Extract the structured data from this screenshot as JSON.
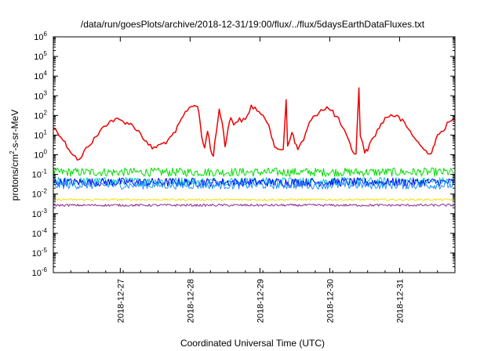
{
  "chart_data": {
    "type": "line",
    "title": "/data/run/goesPlots/archive/2018-12-31/19:00/flux/../flux/5daysEarthDataFluxes.txt",
    "xlabel": "Coordinated Universal Time (UTC)",
    "ylabel": "protons/cm2-s-sr-MeV",
    "ylabel_parts": {
      "base": "protons/cm",
      "sup": "2",
      "rest": "-s-sr-MeV"
    },
    "y_scale": "log",
    "ylim": [
      "1e-6",
      "1e6"
    ],
    "y_ticks": [
      {
        "base": "10",
        "exp": "-6"
      },
      {
        "base": "10",
        "exp": "-5"
      },
      {
        "base": "10",
        "exp": "-4"
      },
      {
        "base": "10",
        "exp": "-3"
      },
      {
        "base": "10",
        "exp": "-2"
      },
      {
        "base": "10",
        "exp": "-1"
      },
      {
        "base": "10",
        "exp": "0"
      },
      {
        "base": "10",
        "exp": "1"
      },
      {
        "base": "10",
        "exp": "2"
      },
      {
        "base": "10",
        "exp": "3"
      },
      {
        "base": "10",
        "exp": "4"
      },
      {
        "base": "10",
        "exp": "5"
      },
      {
        "base": "10",
        "exp": "6"
      }
    ],
    "x_ticks": [
      "2018-12-27",
      "2018-12-28",
      "2018-12-29",
      "2018-12-30",
      "2018-12-31"
    ],
    "x_start": "2018-12-26T01:00",
    "x_end": "2018-12-31T19:00",
    "grid": false,
    "legend": "none",
    "series": [
      {
        "color": "#ee0000",
        "points": [
          [
            "2018-12-26T01:00",
            25
          ],
          [
            "2018-12-26T03:00",
            12
          ],
          [
            "2018-12-26T05:00",
            4
          ],
          [
            "2018-12-26T07:00",
            1.5
          ],
          [
            "2018-12-26T08:30",
            0.8
          ],
          [
            "2018-12-26T10:00",
            0.5
          ],
          [
            "2018-12-26T11:30",
            1.3
          ],
          [
            "2018-12-26T13:00",
            3
          ],
          [
            "2018-12-26T15:00",
            6
          ],
          [
            "2018-12-26T17:00",
            15
          ],
          [
            "2018-12-26T19:00",
            35
          ],
          [
            "2018-12-26T21:00",
            55
          ],
          [
            "2018-12-26T23:00",
            60
          ],
          [
            "2018-12-27T01:00",
            50
          ],
          [
            "2018-12-27T03:00",
            40
          ],
          [
            "2018-12-27T05:00",
            25
          ],
          [
            "2018-12-27T07:00",
            12
          ],
          [
            "2018-12-27T09:00",
            4
          ],
          [
            "2018-12-27T11:00",
            2.2
          ],
          [
            "2018-12-27T13:00",
            2.8
          ],
          [
            "2018-12-27T15:00",
            4
          ],
          [
            "2018-12-27T17:00",
            6
          ],
          [
            "2018-12-27T19:00",
            15
          ],
          [
            "2018-12-27T21:00",
            60
          ],
          [
            "2018-12-27T23:00",
            200
          ],
          [
            "2018-12-28T01:00",
            350
          ],
          [
            "2018-12-28T02:00",
            330
          ],
          [
            "2018-12-28T03:00",
            150
          ],
          [
            "2018-12-28T04:00",
            8
          ],
          [
            "2018-12-28T05:00",
            2
          ],
          [
            "2018-12-28T06:00",
            20
          ],
          [
            "2018-12-28T07:00",
            2
          ],
          [
            "2018-12-28T08:00",
            0.9
          ],
          [
            "2018-12-28T09:00",
            15
          ],
          [
            "2018-12-28T10:00",
            200
          ],
          [
            "2018-12-28T11:00",
            50
          ],
          [
            "2018-12-28T12:00",
            3
          ],
          [
            "2018-12-28T13:00",
            20
          ],
          [
            "2018-12-28T14:00",
            80
          ],
          [
            "2018-12-28T15:00",
            40
          ],
          [
            "2018-12-28T17:00",
            60
          ],
          [
            "2018-12-28T19:00",
            55
          ],
          [
            "2018-12-28T21:00",
            300
          ],
          [
            "2018-12-28T23:00",
            200
          ],
          [
            "2018-12-29T01:00",
            80
          ],
          [
            "2018-12-29T03:00",
            40
          ],
          [
            "2018-12-29T04:00",
            10
          ],
          [
            "2018-12-29T05:00",
            3
          ],
          [
            "2018-12-29T06:00",
            1.5
          ],
          [
            "2018-12-29T08:00",
            2
          ],
          [
            "2018-12-29T09:00",
            700
          ],
          [
            "2018-12-29T09:30",
            3
          ],
          [
            "2018-12-29T11:00",
            15
          ],
          [
            "2018-12-29T12:00",
            4
          ],
          [
            "2018-12-29T13:00",
            2
          ],
          [
            "2018-12-29T15:00",
            6
          ],
          [
            "2018-12-29T17:00",
            40
          ],
          [
            "2018-12-29T19:00",
            100
          ],
          [
            "2018-12-29T21:00",
            200
          ],
          [
            "2018-12-29T23:00",
            250
          ],
          [
            "2018-12-30T01:00",
            150
          ],
          [
            "2018-12-30T03:00",
            60
          ],
          [
            "2018-12-30T05:00",
            15
          ],
          [
            "2018-12-30T07:00",
            3
          ],
          [
            "2018-12-30T08:00",
            1.5
          ],
          [
            "2018-12-30T09:00",
            1
          ],
          [
            "2018-12-30T10:00",
            2500
          ],
          [
            "2018-12-30T10:30",
            8
          ],
          [
            "2018-12-30T12:00",
            1.5
          ],
          [
            "2018-12-30T13:00",
            2
          ],
          [
            "2018-12-30T15:00",
            8
          ],
          [
            "2018-12-30T17:00",
            25
          ],
          [
            "2018-12-30T19:00",
            70
          ],
          [
            "2018-12-30T21:00",
            110
          ],
          [
            "2018-12-30T23:00",
            90
          ],
          [
            "2018-12-31T01:00",
            50
          ],
          [
            "2018-12-31T03:00",
            20
          ],
          [
            "2018-12-31T05:00",
            8
          ],
          [
            "2018-12-31T07:00",
            3
          ],
          [
            "2018-12-31T09:00",
            1.5
          ],
          [
            "2018-12-31T11:00",
            1.3
          ],
          [
            "2018-12-31T12:00",
            4
          ],
          [
            "2018-12-31T13:00",
            8
          ],
          [
            "2018-12-31T15:00",
            20
          ],
          [
            "2018-12-31T17:00",
            45
          ],
          [
            "2018-12-31T19:00",
            60
          ]
        ]
      },
      {
        "color": "#00dd00",
        "points": [
          [
            "2018-12-26T01:00",
            0.13
          ],
          [
            "2018-12-31T19:00",
            0.13
          ]
        ],
        "noise": 0.22
      },
      {
        "color": "#00c8c8",
        "points": [
          [
            "2018-12-26T01:00",
            0.045
          ],
          [
            "2018-12-31T19:00",
            0.045
          ]
        ],
        "noise": 0.2
      },
      {
        "color": "#0000ff",
        "points": [
          [
            "2018-12-26T01:00",
            0.04
          ],
          [
            "2018-12-31T19:00",
            0.04
          ]
        ],
        "noise": 0.22
      },
      {
        "color": "#1e90ff",
        "points": [
          [
            "2018-12-26T01:00",
            0.028
          ],
          [
            "2018-12-31T19:00",
            0.028
          ]
        ],
        "noise": 0.2
      },
      {
        "color": "#f0e000",
        "points": [
          [
            "2018-12-26T01:00",
            0.0052
          ],
          [
            "2018-12-31T19:00",
            0.0052
          ]
        ],
        "noise": 0.05
      },
      {
        "color": "#8b2a8b",
        "points": [
          [
            "2018-12-26T01:00",
            0.0027
          ],
          [
            "2018-12-31T19:00",
            0.0027
          ]
        ],
        "noise": 0.06
      }
    ]
  }
}
